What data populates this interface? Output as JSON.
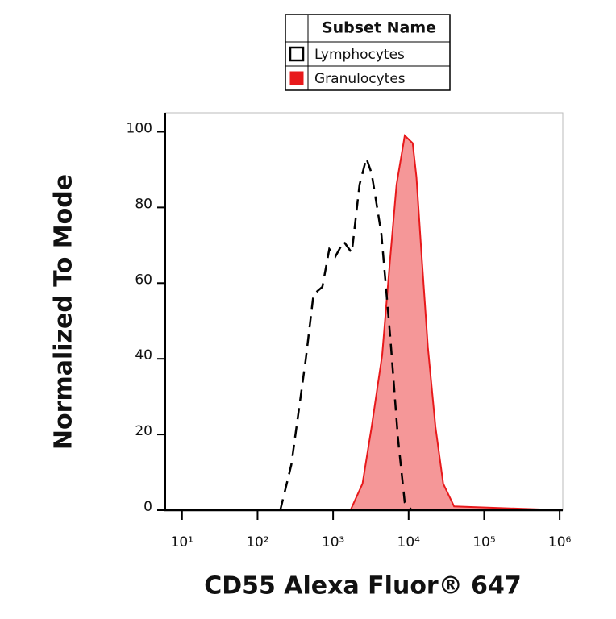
{
  "chart_data": {
    "type": "histogram-overlay",
    "xlabel": "CD55 Alexa Fluor® 647",
    "ylabel": "Normalized To Mode",
    "legend_title": "Subset Name",
    "xscale": "log",
    "xlim": [
      6,
      1100000
    ],
    "ylim": [
      0,
      105
    ],
    "xticks": [
      {
        "value": 10,
        "label": "10¹"
      },
      {
        "value": 100,
        "label": "10²"
      },
      {
        "value": 1000,
        "label": "10³"
      },
      {
        "value": 10000,
        "label": "10⁴"
      },
      {
        "value": 100000,
        "label": "10⁵"
      },
      {
        "value": 1000000,
        "label": "10⁶"
      }
    ],
    "yticks": [
      0,
      20,
      40,
      60,
      80,
      100
    ],
    "series": [
      {
        "name": "Lymphocytes",
        "color": "#000000",
        "style": "dashed",
        "filled": false,
        "x": [
          200,
          280,
          435,
          550,
          720,
          890,
          1070,
          1380,
          1770,
          2240,
          2760,
          3240,
          4360,
          5750,
          7240,
          8900,
          11000
        ],
        "values": [
          0,
          12,
          40,
          57,
          59,
          69,
          67,
          71,
          68,
          86,
          93,
          89,
          73,
          45,
          19,
          2,
          0
        ]
      },
      {
        "name": "Granulocytes",
        "color": "#e8191b",
        "style": "solid",
        "filled": true,
        "x": [
          6,
          1700,
          2450,
          3240,
          4470,
          5620,
          6920,
          8900,
          10000,
          11300,
          12700,
          14900,
          18000,
          22700,
          28700,
          40000,
          1100000
        ],
        "values": [
          0,
          0,
          7,
          22,
          41,
          65,
          86,
          99,
          98,
          97,
          88,
          67,
          43,
          22,
          7,
          1,
          0
        ]
      }
    ]
  }
}
